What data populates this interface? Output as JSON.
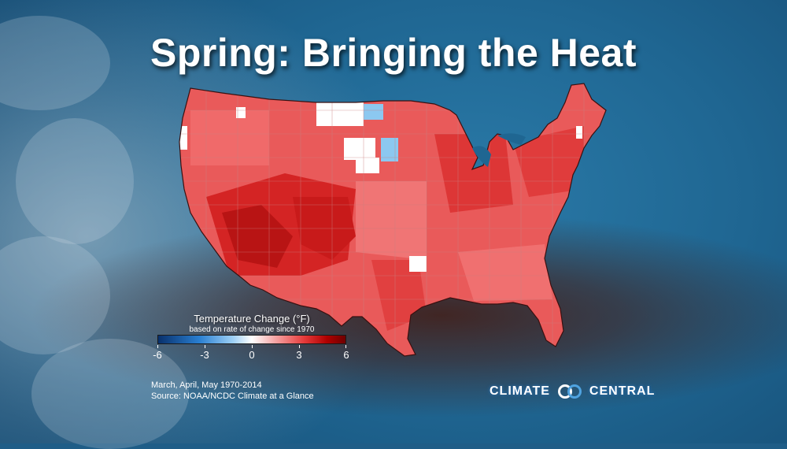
{
  "title": "Spring: Bringing the Heat",
  "legend": {
    "title": "Temperature Change (°F)",
    "subtitle": "based on rate of change since 1970",
    "ticks": [
      "-6",
      "-3",
      "0",
      "3",
      "6"
    ],
    "range": [
      -6,
      6
    ],
    "colors": [
      "#08306b",
      "#2a7fd1",
      "#ffffff",
      "#e53a3a",
      "#6e0000"
    ]
  },
  "map": {
    "region": "Contiguous United States",
    "dominant_color": "#e95a5a",
    "hot_color": "#c81010",
    "cool_color": "#8cc8f0",
    "neutral_color": "#ffffff"
  },
  "footnotes": {
    "period": "March, April, May 1970-2014",
    "source": "Source: NOAA/NCDC Climate at a Glance"
  },
  "logo": {
    "left": "CLIMATE",
    "right": "CENTRAL",
    "icon": "interlocking-rings-icon"
  }
}
